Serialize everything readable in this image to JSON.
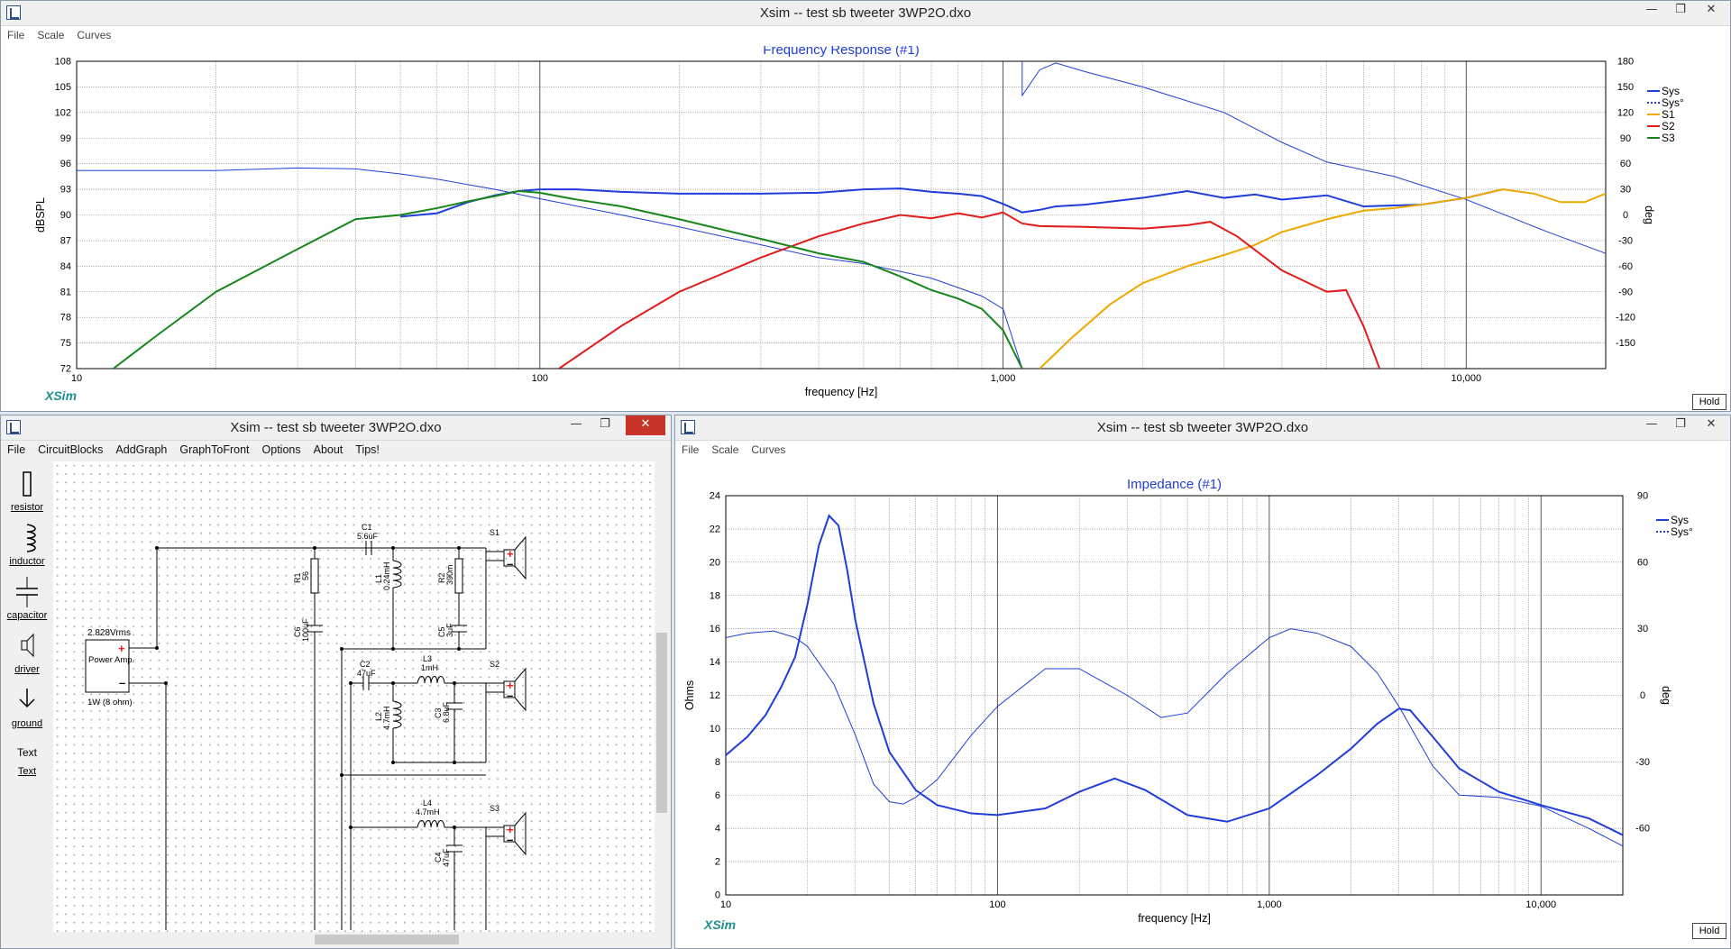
{
  "top_window": {
    "title": "Xsim -- test sb tweeter 3WP2O.dxo",
    "menu": [
      "File",
      "Scale",
      "Curves"
    ],
    "hold_label": "Hold",
    "brand": "XSim",
    "chart_data": {
      "type": "line",
      "title": "Frequency Response (#1)",
      "xlabel": "frequency [Hz]",
      "ylabel": "dBSPL",
      "y2label": "deg",
      "xscale": "log",
      "xlim": [
        10,
        20000
      ],
      "ylim": [
        72,
        108
      ],
      "y2lim": [
        -180,
        180
      ],
      "x_tick_labels": [
        "10",
        "100",
        "1,000",
        "10,000"
      ],
      "y_ticks": [
        72,
        75,
        78,
        81,
        84,
        87,
        90,
        93,
        96,
        99,
        102,
        105,
        108
      ],
      "y2_ticks": [
        -150,
        -120,
        -90,
        -60,
        -30,
        0,
        30,
        60,
        90,
        120,
        150,
        180
      ],
      "grid": true,
      "legend_position": "right",
      "series": [
        {
          "name": "Sys",
          "color": "#1f3ddb",
          "style": "solid",
          "axis": "left",
          "x": [
            50,
            60,
            70,
            80,
            90,
            100,
            120,
            150,
            200,
            300,
            400,
            500,
            600,
            700,
            800,
            900,
            1000,
            1100,
            1200,
            1300,
            1500,
            2000,
            2500,
            3000,
            3500,
            4000,
            5000,
            6000,
            8000,
            10000,
            12000
          ],
          "y": [
            89.8,
            90.2,
            91.5,
            92.3,
            92.8,
            93.0,
            93.0,
            92.7,
            92.5,
            92.5,
            92.6,
            93.0,
            93.1,
            92.7,
            92.5,
            92.2,
            91.3,
            90.3,
            90.6,
            91.0,
            91.2,
            92.0,
            92.8,
            92.0,
            92.4,
            91.8,
            92.3,
            91.0,
            91.2,
            92.0,
            93.0
          ]
        },
        {
          "name": "Sys°",
          "color": "#1f3ddb",
          "style": "dashed",
          "axis": "right",
          "x": [
            10,
            20,
            30,
            40,
            50,
            60,
            80,
            100,
            150,
            200,
            300,
            400,
            500,
            700,
            900,
            1000,
            1100,
            1200,
            1300,
            1500,
            2000,
            3000,
            4000,
            5000,
            7000,
            10000,
            15000,
            20000
          ],
          "y": [
            52,
            52,
            55,
            54,
            48,
            42,
            30,
            19,
            0,
            -14,
            -35,
            -50,
            -57,
            -74,
            -95,
            -110,
            140,
            170,
            178,
            168,
            150,
            120,
            85,
            62,
            45,
            18,
            -20,
            -45
          ]
        },
        {
          "name": "S1",
          "color": "#f0a800",
          "style": "solid",
          "axis": "left",
          "x": [
            1200,
            1400,
            1700,
            2000,
            2500,
            3000,
            3500,
            4000,
            5000,
            6000,
            7000,
            8000,
            10000,
            12000,
            14000,
            16000,
            18000,
            20000
          ],
          "y": [
            72,
            75.5,
            79.5,
            82,
            84,
            85.3,
            86.5,
            88,
            89.5,
            90.5,
            90.8,
            91.2,
            92,
            93,
            92.5,
            91.5,
            91.5,
            92.5
          ]
        },
        {
          "name": "S2",
          "color": "#e21b1b",
          "style": "solid",
          "axis": "left",
          "x": [
            110,
            150,
            200,
            300,
            400,
            500,
            600,
            700,
            800,
            900,
            1000,
            1100,
            1200,
            1500,
            2000,
            2500,
            2800,
            3200,
            4000,
            5000,
            5500,
            6000,
            6500
          ],
          "y": [
            72,
            77,
            81,
            85,
            87.5,
            89,
            90,
            89.6,
            90.2,
            89.7,
            90.3,
            89,
            88.7,
            88.6,
            88.4,
            88.8,
            89.2,
            87.5,
            83.5,
            81,
            81.2,
            77,
            72
          ]
        },
        {
          "name": "S3",
          "color": "#17861a",
          "style": "solid",
          "axis": "left",
          "x": [
            12,
            15,
            20,
            30,
            40,
            50,
            60,
            70,
            80,
            90,
            100,
            120,
            150,
            200,
            300,
            400,
            500,
            600,
            700,
            800,
            900,
            1000,
            1100
          ],
          "y": [
            72,
            76,
            81,
            86,
            89.5,
            90,
            90.8,
            91.6,
            92.2,
            92.8,
            92.6,
            91.8,
            91.0,
            89.5,
            87.2,
            85.5,
            84.5,
            82.8,
            81.2,
            80.2,
            79.0,
            76.5,
            72
          ]
        }
      ]
    }
  },
  "circuit_window": {
    "title": "Xsim -- test sb tweeter 3WP2O.dxo",
    "menu": [
      "File",
      "CircuitBlocks",
      "AddGraph",
      "GraphToFront",
      "Options",
      "About",
      "Tips!"
    ],
    "toolbox": [
      "resistor",
      "inductor",
      "capacitor",
      "driver",
      "ground",
      "Text"
    ],
    "text_tool_preview": "Text",
    "components": {
      "amp_voltage": "2.828Vrms",
      "amp_label": "Power Amp.",
      "amp_rating": "1W (8 ohm)",
      "R1": "R1",
      "R1_val": "56",
      "C6": "C6",
      "C6_val": "100uF",
      "C1": "C1",
      "C1_val": "5.6uF",
      "L1": "L1",
      "L1_val": "0.24mH",
      "R2": "R2",
      "R2_val": "390m",
      "C5": "C5",
      "C5_val": "3uF",
      "C2": "C2",
      "C2_val": "47uF",
      "L3": "L3",
      "L3_val": "1mH",
      "L2": "L2",
      "L2_val": "4.7mH",
      "C3": "C3",
      "C3_val": "6.8uF",
      "L4": "L4",
      "L4_val": "4.7mH",
      "C4": "C4",
      "C4_val": "47uF",
      "S1": "S1",
      "S2": "S2",
      "S3": "S3"
    }
  },
  "impedance_window": {
    "title": "Xsim -- test sb tweeter 3WP2O.dxo",
    "menu": [
      "File",
      "Scale",
      "Curves"
    ],
    "hold_label": "Hold",
    "brand": "XSim",
    "chart_data": {
      "type": "line",
      "title": "Impedance (#1)",
      "xlabel": "frequency [Hz]",
      "ylabel": "Ohms",
      "y2label": "deg",
      "xscale": "log",
      "xlim": [
        10,
        20000
      ],
      "ylim": [
        0,
        24
      ],
      "y2lim": [
        -90,
        90
      ],
      "x_tick_labels": [
        "10",
        "100",
        "1,000",
        "10,000"
      ],
      "y_ticks": [
        0,
        2,
        4,
        6,
        8,
        10,
        12,
        14,
        16,
        18,
        20,
        22,
        24
      ],
      "y2_ticks": [
        -60,
        -30,
        0,
        30,
        60,
        90
      ],
      "grid": true,
      "legend_position": "top-right",
      "series": [
        {
          "name": "Sys",
          "color": "#1f3ddb",
          "style": "solid",
          "axis": "left",
          "x": [
            10,
            12,
            14,
            16,
            18,
            20,
            22,
            24,
            26,
            28,
            30,
            35,
            40,
            50,
            60,
            80,
            100,
            150,
            200,
            270,
            350,
            500,
            700,
            1000,
            1500,
            2000,
            2500,
            3000,
            3300,
            4000,
            5000,
            7000,
            10000,
            15000,
            20000
          ],
          "y": [
            8.4,
            9.5,
            10.8,
            12.5,
            14.3,
            17.5,
            21,
            22.8,
            22.2,
            19.5,
            16.5,
            11.5,
            8.6,
            6.3,
            5.4,
            4.9,
            4.8,
            5.2,
            6.2,
            7.0,
            6.3,
            4.8,
            4.4,
            5.2,
            7.2,
            8.8,
            10.3,
            11.2,
            11.1,
            9.5,
            7.6,
            6.2,
            5.4,
            4.6,
            3.6
          ]
        },
        {
          "name": "Sys°",
          "color": "#1f3ddb",
          "style": "dashed",
          "axis": "right",
          "x": [
            10,
            12,
            15,
            18,
            20,
            25,
            30,
            35,
            40,
            45,
            50,
            60,
            80,
            100,
            150,
            200,
            300,
            400,
            500,
            700,
            1000,
            1200,
            1500,
            2000,
            2500,
            3000,
            4000,
            5000,
            7000,
            10000,
            15000,
            20000
          ],
          "y": [
            26,
            28,
            29,
            26,
            22,
            5,
            -18,
            -40,
            -48,
            -49,
            -46,
            -38,
            -18,
            -5,
            12,
            12,
            0,
            -10,
            -8,
            10,
            26,
            30,
            28,
            22,
            10,
            -5,
            -32,
            -45,
            -46,
            -50,
            -60,
            -68
          ]
        }
      ]
    }
  }
}
